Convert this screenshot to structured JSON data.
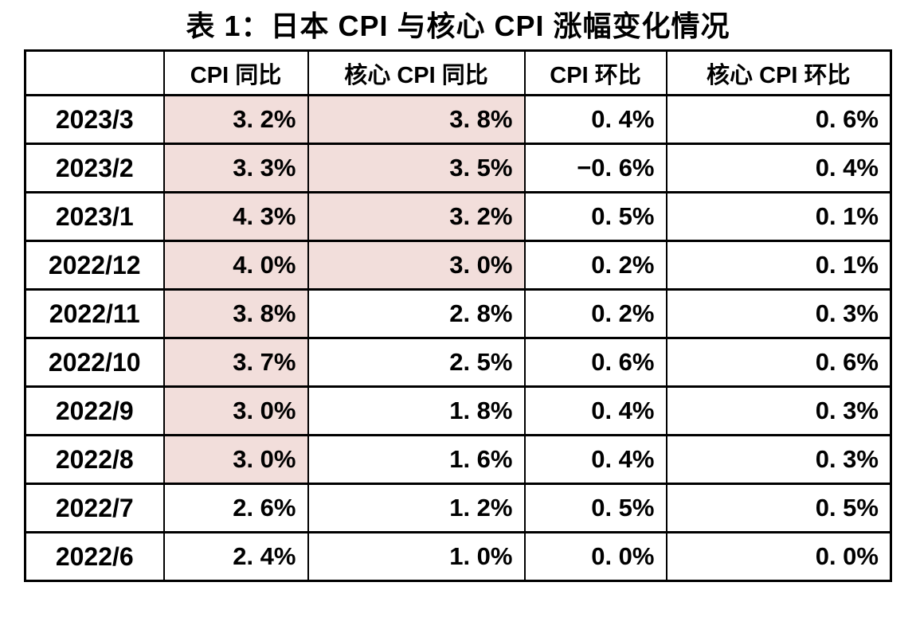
{
  "title": "表 1：日本 CPI 与核心 CPI 涨幅变化情况",
  "colors": {
    "highlight": "#F2DEDB",
    "border": "#000000",
    "text": "#000000",
    "background": "#FFFFFF"
  },
  "table": {
    "headers": [
      "",
      "CPI 同比",
      "核心 CPI 同比",
      "CPI 环比",
      "核心 CPI 环比"
    ],
    "rows": [
      {
        "cells": [
          "2023/3",
          "3. 2%",
          "3. 8%",
          "0. 4%",
          "0. 6%"
        ],
        "highlight": [
          false,
          true,
          true,
          false,
          false
        ]
      },
      {
        "cells": [
          "2023/2",
          "3. 3%",
          "3. 5%",
          "−0. 6%",
          "0. 4%"
        ],
        "highlight": [
          false,
          true,
          true,
          false,
          false
        ]
      },
      {
        "cells": [
          "2023/1",
          "4. 3%",
          "3. 2%",
          "0. 5%",
          "0. 1%"
        ],
        "highlight": [
          false,
          true,
          true,
          false,
          false
        ]
      },
      {
        "cells": [
          "2022/12",
          "4. 0%",
          "3. 0%",
          "0. 2%",
          "0. 1%"
        ],
        "highlight": [
          false,
          true,
          true,
          false,
          false
        ]
      },
      {
        "cells": [
          "2022/11",
          "3. 8%",
          "2. 8%",
          "0. 2%",
          "0. 3%"
        ],
        "highlight": [
          false,
          true,
          false,
          false,
          false
        ]
      },
      {
        "cells": [
          "2022/10",
          "3. 7%",
          "2. 5%",
          "0. 6%",
          "0. 6%"
        ],
        "highlight": [
          false,
          true,
          false,
          false,
          false
        ]
      },
      {
        "cells": [
          "2022/9",
          "3. 0%",
          "1. 8%",
          "0. 4%",
          "0. 3%"
        ],
        "highlight": [
          false,
          true,
          false,
          false,
          false
        ]
      },
      {
        "cells": [
          "2022/8",
          "3. 0%",
          "1. 6%",
          "0. 4%",
          "0. 3%"
        ],
        "highlight": [
          false,
          true,
          false,
          false,
          false
        ]
      },
      {
        "cells": [
          "2022/7",
          "2. 6%",
          "1. 2%",
          "0. 5%",
          "0. 5%"
        ],
        "highlight": [
          false,
          false,
          false,
          false,
          false
        ]
      },
      {
        "cells": [
          "2022/6",
          "2. 4%",
          "1. 0%",
          "0. 0%",
          "0. 0%"
        ],
        "highlight": [
          false,
          false,
          false,
          false,
          false
        ]
      }
    ]
  },
  "chart_data": {
    "type": "table",
    "title": "表 1：日本 CPI 与核心 CPI 涨幅变化情况",
    "unit": "%",
    "categories": [
      "2023/3",
      "2023/2",
      "2023/1",
      "2022/12",
      "2022/11",
      "2022/10",
      "2022/9",
      "2022/8",
      "2022/7",
      "2022/6"
    ],
    "series": [
      {
        "name": "CPI 同比",
        "values": [
          3.2,
          3.3,
          4.3,
          4.0,
          3.8,
          3.7,
          3.0,
          3.0,
          2.6,
          2.4
        ]
      },
      {
        "name": "核心 CPI 同比",
        "values": [
          3.8,
          3.5,
          3.2,
          3.0,
          2.8,
          2.5,
          1.8,
          1.6,
          1.2,
          1.0
        ]
      },
      {
        "name": "CPI 环比",
        "values": [
          0.4,
          -0.6,
          0.5,
          0.2,
          0.2,
          0.6,
          0.4,
          0.4,
          0.5,
          0.0
        ]
      },
      {
        "name": "核心 CPI 环比",
        "values": [
          0.6,
          0.4,
          0.1,
          0.1,
          0.3,
          0.6,
          0.3,
          0.3,
          0.5,
          0.0
        ]
      }
    ],
    "highlighted_cells": {
      "CPI 同比": [
        "2023/3",
        "2023/2",
        "2023/1",
        "2022/12",
        "2022/11",
        "2022/10",
        "2022/9",
        "2022/8"
      ],
      "核心 CPI 同比": [
        "2023/3",
        "2023/2",
        "2023/1",
        "2022/12"
      ]
    }
  }
}
